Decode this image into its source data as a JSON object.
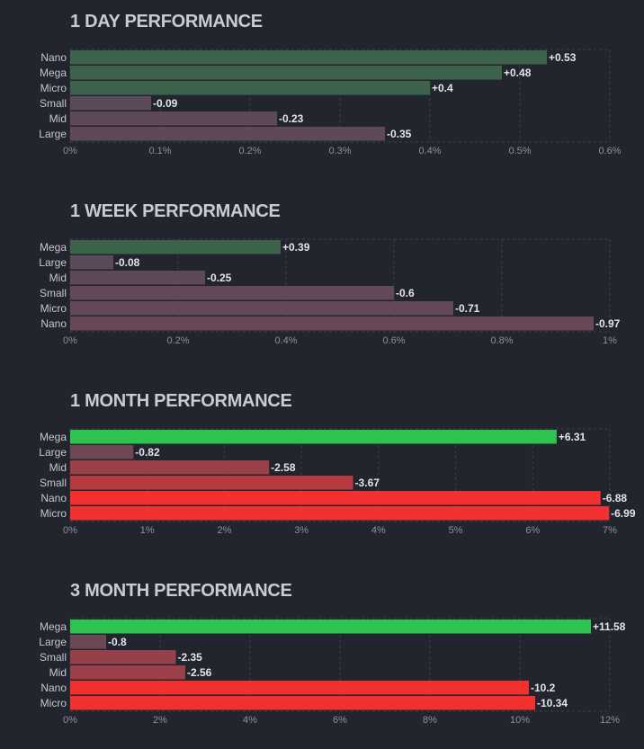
{
  "colors": {
    "background": "#22252d",
    "grid": "#3a3e48",
    "positive_scale": [
      "#3e5e4c",
      "#2ec24f"
    ],
    "negative_scale": [
      "#5a4a5a",
      "#f23030"
    ]
  },
  "chart_data": [
    {
      "type": "bar",
      "orientation": "horizontal",
      "title": "1 DAY PERFORMANCE",
      "categories": [
        "Nano",
        "Mega",
        "Micro",
        "Small",
        "Mid",
        "Large"
      ],
      "values": [
        0.53,
        0.48,
        0.4,
        -0.09,
        -0.23,
        -0.35
      ],
      "value_labels": [
        "+0.53",
        "+0.48",
        "+0.4",
        "-0.09",
        "-0.23",
        "-0.35"
      ],
      "xlim": [
        0,
        0.6
      ],
      "x_ticks": [
        0,
        0.1,
        0.2,
        0.3,
        0.4,
        0.5,
        0.6
      ],
      "x_tick_labels": [
        "0%",
        "0.1%",
        "0.2%",
        "0.3%",
        "0.4%",
        "0.5%",
        "0.6%"
      ],
      "color_scale_max": 10,
      "grid": true
    },
    {
      "type": "bar",
      "orientation": "horizontal",
      "title": "1 WEEK PERFORMANCE",
      "categories": [
        "Mega",
        "Large",
        "Mid",
        "Small",
        "Micro",
        "Nano"
      ],
      "values": [
        0.39,
        -0.08,
        -0.25,
        -0.6,
        -0.71,
        -0.97
      ],
      "value_labels": [
        "+0.39",
        "-0.08",
        "-0.25",
        "-0.6",
        "-0.71",
        "-0.97"
      ],
      "xlim": [
        0,
        1
      ],
      "x_ticks": [
        0,
        0.2,
        0.4,
        0.6,
        0.8,
        1
      ],
      "x_tick_labels": [
        "0%",
        "0.2%",
        "0.4%",
        "0.6%",
        "0.8%",
        "1%"
      ],
      "color_scale_max": 10,
      "grid": true
    },
    {
      "type": "bar",
      "orientation": "horizontal",
      "title": "1 MONTH PERFORMANCE",
      "categories": [
        "Mega",
        "Large",
        "Mid",
        "Small",
        "Nano",
        "Micro"
      ],
      "values": [
        6.31,
        -0.82,
        -2.58,
        -3.67,
        -6.88,
        -6.99
      ],
      "value_labels": [
        "+6.31",
        "-0.82",
        "-2.58",
        "-3.67",
        "-6.88",
        "-6.99"
      ],
      "xlim": [
        0,
        7
      ],
      "x_ticks": [
        0,
        1,
        2,
        3,
        4,
        5,
        6,
        7
      ],
      "x_tick_labels": [
        "0%",
        "1%",
        "2%",
        "3%",
        "4%",
        "5%",
        "6%",
        "7%"
      ],
      "color_scale_max": 6,
      "grid": true
    },
    {
      "type": "bar",
      "orientation": "horizontal",
      "title": "3 MONTH PERFORMANCE",
      "categories": [
        "Mega",
        "Large",
        "Small",
        "Mid",
        "Nano",
        "Micro"
      ],
      "values": [
        11.58,
        -0.8,
        -2.35,
        -2.56,
        -10.2,
        -10.34
      ],
      "value_labels": [
        "+11.58",
        "-0.8",
        "-2.35",
        "-2.56",
        "-10.2",
        "-10.34"
      ],
      "xlim": [
        0,
        12
      ],
      "x_ticks": [
        0,
        2,
        4,
        6,
        8,
        10,
        12
      ],
      "x_tick_labels": [
        "0%",
        "2%",
        "4%",
        "6%",
        "8%",
        "10%",
        "12%"
      ],
      "color_scale_max": 6,
      "grid": true
    }
  ]
}
